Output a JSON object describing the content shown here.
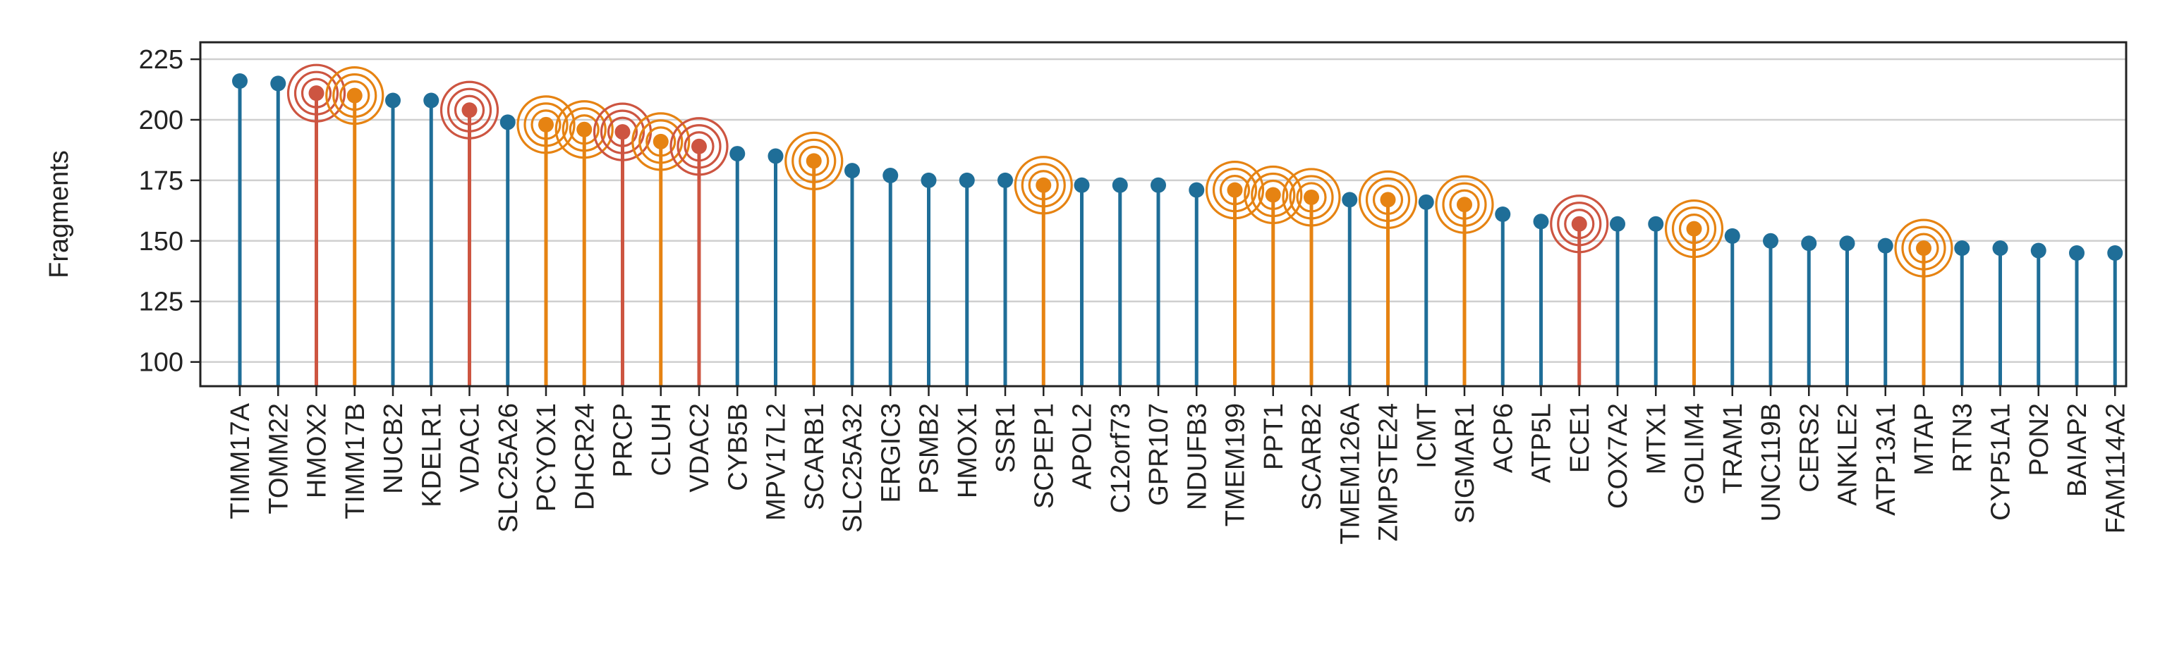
{
  "chart_data": {
    "type": "lollipop",
    "ylabel": "Fragments",
    "ylim": [
      90,
      232
    ],
    "yticks": [
      100,
      125,
      150,
      175,
      200,
      225
    ],
    "grid": "horizontal",
    "colors": {
      "default": "#1f6e98",
      "red": "#cd5541",
      "orange": "#e68312"
    },
    "points": [
      {
        "label": "TIMM17A",
        "value": 216,
        "group": "default"
      },
      {
        "label": "TOMM22",
        "value": 215,
        "group": "default"
      },
      {
        "label": "HMOX2",
        "value": 211,
        "group": "red"
      },
      {
        "label": "TIMM17B",
        "value": 210,
        "group": "orange"
      },
      {
        "label": "NUCB2",
        "value": 208,
        "group": "default"
      },
      {
        "label": "KDELR1",
        "value": 208,
        "group": "default"
      },
      {
        "label": "VDAC1",
        "value": 204,
        "group": "red"
      },
      {
        "label": "SLC25A26",
        "value": 199,
        "group": "default"
      },
      {
        "label": "PCYOX1",
        "value": 198,
        "group": "orange"
      },
      {
        "label": "DHCR24",
        "value": 196,
        "group": "orange"
      },
      {
        "label": "PRCP",
        "value": 195,
        "group": "red"
      },
      {
        "label": "CLUH",
        "value": 191,
        "group": "orange"
      },
      {
        "label": "VDAC2",
        "value": 189,
        "group": "red"
      },
      {
        "label": "CYB5B",
        "value": 186,
        "group": "default"
      },
      {
        "label": "MPV17L2",
        "value": 185,
        "group": "default"
      },
      {
        "label": "SCARB1",
        "value": 183,
        "group": "orange"
      },
      {
        "label": "SLC25A32",
        "value": 179,
        "group": "default"
      },
      {
        "label": "ERGIC3",
        "value": 177,
        "group": "default"
      },
      {
        "label": "PSMB2",
        "value": 175,
        "group": "default"
      },
      {
        "label": "HMOX1",
        "value": 175,
        "group": "default"
      },
      {
        "label": "SSR1",
        "value": 175,
        "group": "default"
      },
      {
        "label": "SCPEP1",
        "value": 173,
        "group": "orange"
      },
      {
        "label": "APOL2",
        "value": 173,
        "group": "default"
      },
      {
        "label": "C12orf73",
        "value": 173,
        "group": "default"
      },
      {
        "label": "GPR107",
        "value": 173,
        "group": "default"
      },
      {
        "label": "NDUFB3",
        "value": 171,
        "group": "default"
      },
      {
        "label": "TMEM199",
        "value": 171,
        "group": "orange"
      },
      {
        "label": "PPT1",
        "value": 169,
        "group": "orange"
      },
      {
        "label": "SCARB2",
        "value": 168,
        "group": "orange"
      },
      {
        "label": "TMEM126A",
        "value": 167,
        "group": "default"
      },
      {
        "label": "ZMPSTE24",
        "value": 167,
        "group": "orange"
      },
      {
        "label": "ICMT",
        "value": 166,
        "group": "default"
      },
      {
        "label": "SIGMAR1",
        "value": 165,
        "group": "orange"
      },
      {
        "label": "ACP6",
        "value": 161,
        "group": "default"
      },
      {
        "label": "ATP5L",
        "value": 158,
        "group": "default"
      },
      {
        "label": "ECE1",
        "value": 157,
        "group": "red"
      },
      {
        "label": "COX7A2",
        "value": 157,
        "group": "default"
      },
      {
        "label": "MTX1",
        "value": 157,
        "group": "default"
      },
      {
        "label": "GOLIM4",
        "value": 155,
        "group": "orange"
      },
      {
        "label": "TRAM1",
        "value": 152,
        "group": "default"
      },
      {
        "label": "UNC119B",
        "value": 150,
        "group": "default"
      },
      {
        "label": "CERS2",
        "value": 149,
        "group": "default"
      },
      {
        "label": "ANKLE2",
        "value": 149,
        "group": "default"
      },
      {
        "label": "ATP13A1",
        "value": 148,
        "group": "default"
      },
      {
        "label": "MTAP",
        "value": 147,
        "group": "orange"
      },
      {
        "label": "RTN3",
        "value": 147,
        "group": "default"
      },
      {
        "label": "CYP51A1",
        "value": 147,
        "group": "default"
      },
      {
        "label": "PON2",
        "value": 146,
        "group": "default"
      },
      {
        "label": "BAIAP2",
        "value": 145,
        "group": "default"
      },
      {
        "label": "FAM114A2",
        "value": 145,
        "group": "default"
      }
    ]
  }
}
